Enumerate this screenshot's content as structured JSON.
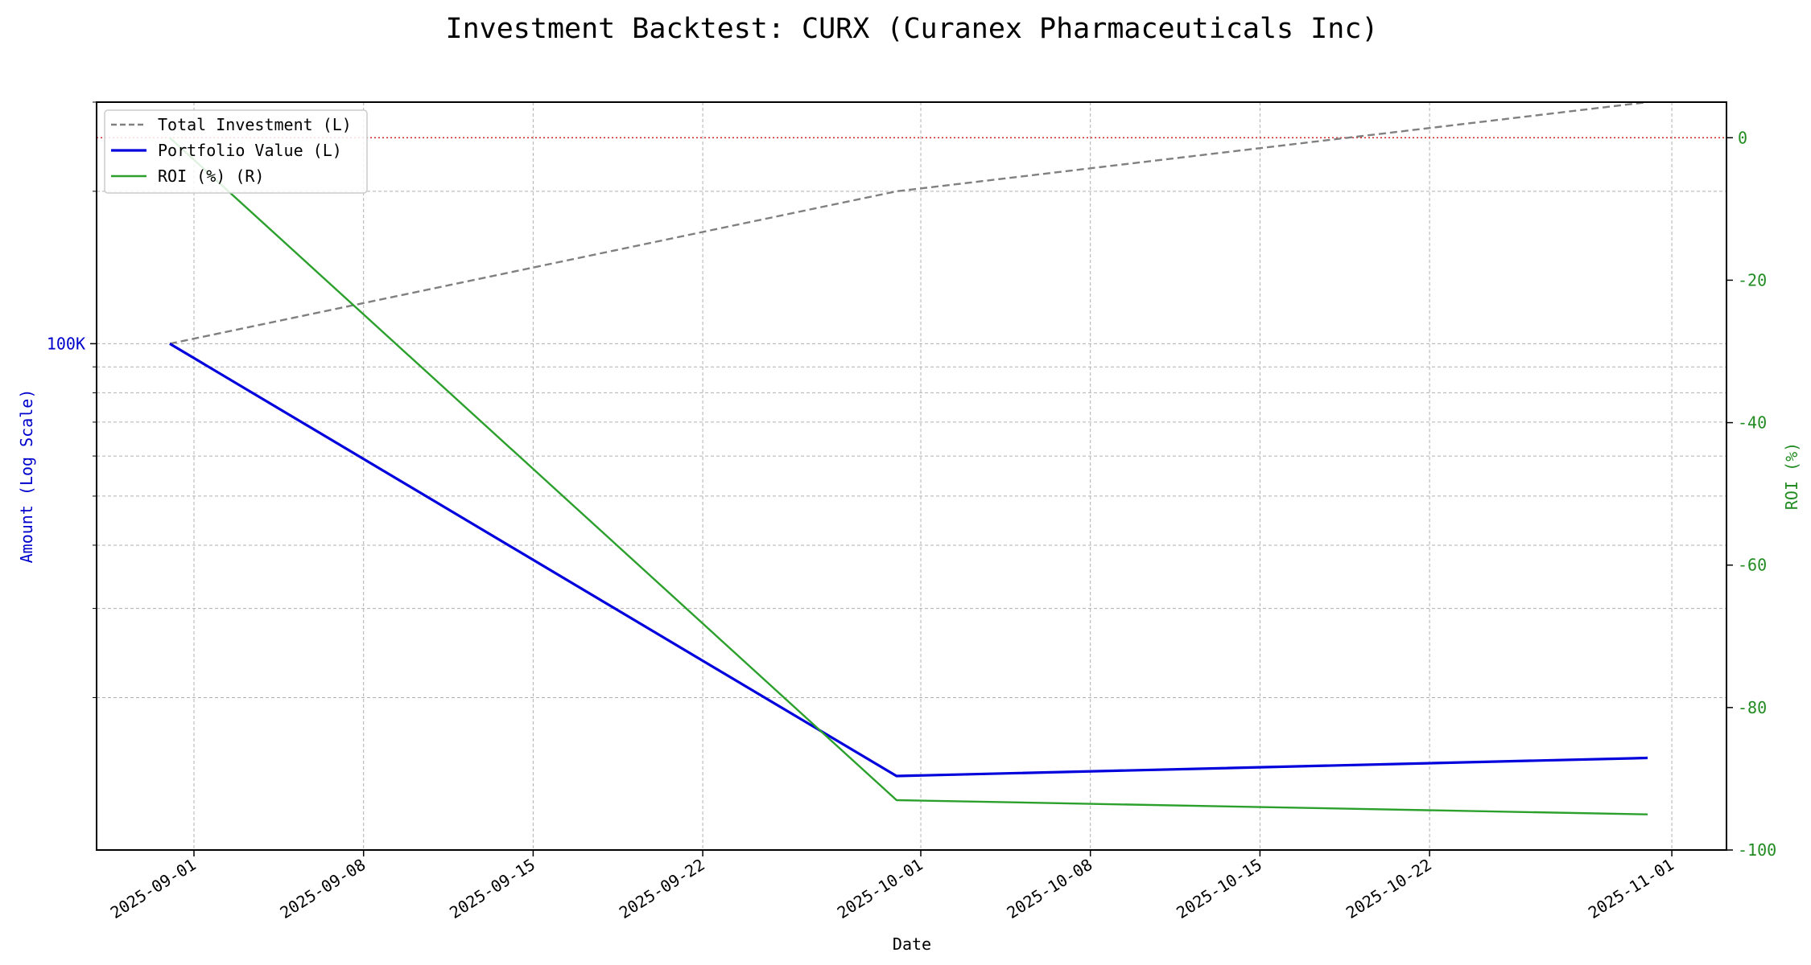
{
  "chart_data": {
    "type": "line",
    "title": "Investment Backtest: CURX (Curanex Pharmaceuticals Inc)",
    "xlabel": "Date",
    "ylabel_left": "Amount (Log Scale)",
    "ylabel_right": "ROI (%)",
    "x_ticks": [
      "2025-09-01",
      "2025-09-08",
      "2025-09-15",
      "2025-09-22",
      "2025-10-01",
      "2025-10-08",
      "2025-10-15",
      "2025-10-22",
      "2025-11-01"
    ],
    "y_left_scale": "log",
    "y_left_ticks": [
      {
        "value": 100000,
        "label": "100K"
      }
    ],
    "y_left_lim": [
      10000,
      300000
    ],
    "y_right_ticks": [
      0,
      -20,
      -40,
      -60,
      -80,
      -100
    ],
    "y_right_lim": [
      -100,
      5
    ],
    "reference_line": {
      "axis": "right",
      "value": 0,
      "color": "#d62728",
      "style": "dotted"
    },
    "grid": true,
    "legend_position": "top-left",
    "series": [
      {
        "name": "Total Investment (L)",
        "axis": "left",
        "color": "#808080",
        "style": "dashed",
        "points": [
          {
            "x": "2025-08-31",
            "y": 100000
          },
          {
            "x": "2025-09-30",
            "y": 200000
          },
          {
            "x": "2025-10-31",
            "y": 300000
          }
        ]
      },
      {
        "name": "Portfolio Value (L)",
        "axis": "left",
        "color": "#0000dd",
        "style": "solid",
        "points": [
          {
            "x": "2025-08-31",
            "y": 100000
          },
          {
            "x": "2025-09-30",
            "y": 14000
          },
          {
            "x": "2025-10-31",
            "y": 15200
          }
        ]
      },
      {
        "name": "ROI (%) (R)",
        "axis": "right",
        "color": "#2ca02c",
        "style": "solid",
        "points": [
          {
            "x": "2025-08-31",
            "y": 0
          },
          {
            "x": "2025-09-30",
            "y": -93
          },
          {
            "x": "2025-10-31",
            "y": -95
          }
        ]
      }
    ]
  },
  "colors": {
    "left_axis": "#0000cc",
    "right_axis": "#228b22",
    "grid": "#b0b0b0"
  }
}
